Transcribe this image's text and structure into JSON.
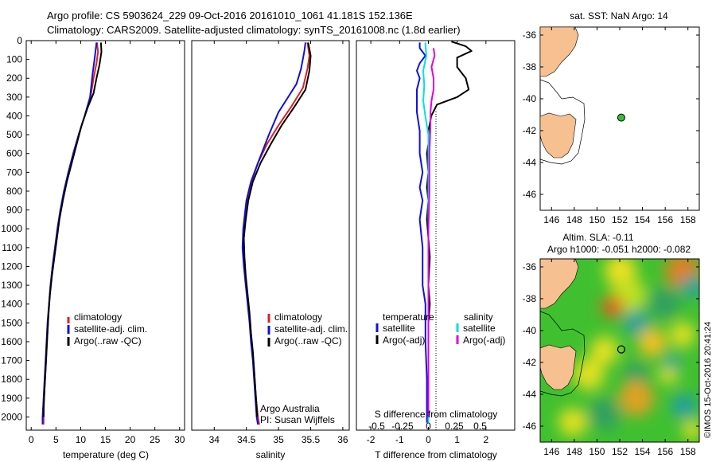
{
  "header": {
    "line1": "Argo profile: CS 5903624_229 09-Oct-2016 20161010_1061 41.181S 152.136E",
    "line2": "Climatology: CARS2009. Satellite-adjusted climatology: synTS_20161008.nc (1.8d earlier)"
  },
  "colors": {
    "climatology": "#e02020",
    "satellite": "#1010e0",
    "argo": "#000000",
    "sat_salinity": "#00e0e0",
    "argo_salinity": "#e000e0",
    "land": "#f7c090"
  },
  "chart_data": [
    {
      "type": "line",
      "name": "temperature-profile",
      "xlabel": "temperature (deg C)",
      "xlim": [
        -1,
        31
      ],
      "ylim": [
        2070,
        0
      ],
      "xticks": [
        "0",
        "5",
        "10",
        "15",
        "20",
        "25",
        "30"
      ],
      "yticks": [
        "0",
        "100",
        "200",
        "300",
        "400",
        "500",
        "600",
        "700",
        "800",
        "900",
        "1000",
        "1100",
        "1200",
        "1300",
        "1400",
        "1500",
        "1600",
        "1700",
        "1800",
        "1900",
        "2000"
      ],
      "legend": [
        "climatology",
        "satellite-adj. clim.",
        "Argo(..raw -QC)"
      ],
      "series": [
        {
          "name": "climatology",
          "color": "#e02020",
          "points": [
            [
              13.3,
              10
            ],
            [
              13.5,
              60
            ],
            [
              13.2,
              120
            ],
            [
              12.6,
              200
            ],
            [
              12.0,
              300
            ],
            [
              10.8,
              400
            ],
            [
              9.6,
              500
            ],
            [
              8.5,
              600
            ],
            [
              7.5,
              700
            ],
            [
              6.7,
              800
            ],
            [
              5.9,
              900
            ],
            [
              5.3,
              1000
            ],
            [
              4.8,
              1100
            ],
            [
              4.3,
              1200
            ],
            [
              3.9,
              1300
            ],
            [
              3.6,
              1400
            ],
            [
              3.4,
              1500
            ],
            [
              3.2,
              1600
            ],
            [
              3.0,
              1700
            ],
            [
              2.8,
              1800
            ],
            [
              2.6,
              1900
            ],
            [
              2.5,
              2000
            ],
            [
              2.5,
              2040
            ]
          ]
        },
        {
          "name": "satellite-adj. clim.",
          "color": "#1010e0",
          "points": [
            [
              13.2,
              10
            ],
            [
              12.9,
              80
            ],
            [
              12.4,
              180
            ],
            [
              11.9,
              300
            ],
            [
              10.8,
              400
            ],
            [
              9.6,
              500
            ],
            [
              8.5,
              600
            ],
            [
              7.5,
              700
            ],
            [
              6.6,
              800
            ],
            [
              5.9,
              900
            ],
            [
              5.3,
              1000
            ],
            [
              4.8,
              1100
            ],
            [
              4.3,
              1200
            ],
            [
              3.9,
              1300
            ],
            [
              3.6,
              1400
            ],
            [
              3.3,
              1500
            ],
            [
              3.1,
              1600
            ],
            [
              2.9,
              1700
            ],
            [
              2.7,
              1800
            ],
            [
              2.5,
              1900
            ],
            [
              2.3,
              2000
            ],
            [
              2.3,
              2040
            ]
          ]
        },
        {
          "name": "Argo(..raw -QC)",
          "color": "#000000",
          "points": [
            [
              14.1,
              10
            ],
            [
              14.2,
              60
            ],
            [
              13.8,
              130
            ],
            [
              13.2,
              200
            ],
            [
              12.6,
              280
            ],
            [
              11.5,
              350
            ],
            [
              10.2,
              450
            ],
            [
              9.2,
              550
            ],
            [
              8.2,
              650
            ],
            [
              7.2,
              750
            ],
            [
              6.4,
              850
            ],
            [
              5.7,
              950
            ],
            [
              5.2,
              1050
            ],
            [
              4.7,
              1150
            ],
            [
              4.2,
              1250
            ],
            [
              3.8,
              1350
            ],
            [
              3.5,
              1450
            ],
            [
              3.3,
              1550
            ],
            [
              3.1,
              1650
            ],
            [
              2.9,
              1750
            ],
            [
              2.7,
              1850
            ],
            [
              2.5,
              1950
            ],
            [
              2.5,
              2000
            ]
          ]
        }
      ]
    },
    {
      "type": "line",
      "name": "salinity-profile",
      "xlabel": "salinity",
      "xlim": [
        33.65,
        36.1
      ],
      "ylim": [
        2070,
        0
      ],
      "xticks": [
        "34",
        "34.5",
        "35",
        "35.5",
        "36"
      ],
      "legend": [
        "climatology",
        "satellite-adj. clim.",
        "Argo(..raw -QC)"
      ],
      "annotation": [
        "Argo Australia",
        "PI: Susan Wijffels"
      ],
      "series": [
        {
          "name": "climatology",
          "color": "#e02020",
          "points": [
            [
              35.45,
              10
            ],
            [
              35.48,
              80
            ],
            [
              35.45,
              150
            ],
            [
              35.38,
              250
            ],
            [
              35.2,
              350
            ],
            [
              35.0,
              450
            ],
            [
              34.82,
              550
            ],
            [
              34.68,
              650
            ],
            [
              34.58,
              750
            ],
            [
              34.52,
              850
            ],
            [
              34.47,
              1000
            ],
            [
              34.45,
              1100
            ],
            [
              34.47,
              1200
            ],
            [
              34.5,
              1300
            ],
            [
              34.53,
              1400
            ],
            [
              34.56,
              1500
            ],
            [
              34.58,
              1600
            ],
            [
              34.61,
              1700
            ],
            [
              34.63,
              1800
            ],
            [
              34.65,
              1900
            ],
            [
              34.68,
              2000
            ],
            [
              34.7,
              2040
            ]
          ]
        },
        {
          "name": "satellite-adj. clim.",
          "color": "#1010e0",
          "points": [
            [
              35.42,
              10
            ],
            [
              35.4,
              60
            ],
            [
              35.35,
              150
            ],
            [
              35.28,
              230
            ],
            [
              35.15,
              300
            ],
            [
              35.0,
              380
            ],
            [
              34.85,
              500
            ],
            [
              34.68,
              650
            ],
            [
              34.57,
              750
            ],
            [
              34.5,
              850
            ],
            [
              34.45,
              1000
            ],
            [
              34.44,
              1100
            ],
            [
              34.46,
              1200
            ],
            [
              34.49,
              1300
            ],
            [
              34.52,
              1400
            ],
            [
              34.55,
              1500
            ],
            [
              34.57,
              1600
            ],
            [
              34.6,
              1700
            ],
            [
              34.62,
              1800
            ],
            [
              34.64,
              1900
            ],
            [
              34.66,
              2000
            ],
            [
              34.68,
              2040
            ]
          ]
        },
        {
          "name": "Argo(..raw -QC)",
          "color": "#000000",
          "points": [
            [
              35.46,
              10
            ],
            [
              35.5,
              80
            ],
            [
              35.48,
              160
            ],
            [
              35.42,
              260
            ],
            [
              35.25,
              350
            ],
            [
              35.05,
              450
            ],
            [
              34.88,
              550
            ],
            [
              34.72,
              650
            ],
            [
              34.6,
              750
            ],
            [
              34.53,
              850
            ],
            [
              34.49,
              950
            ],
            [
              34.46,
              1050
            ],
            [
              34.47,
              1150
            ],
            [
              34.49,
              1250
            ],
            [
              34.52,
              1350
            ],
            [
              34.55,
              1450
            ],
            [
              34.57,
              1550
            ],
            [
              34.6,
              1650
            ],
            [
              34.62,
              1750
            ],
            [
              34.64,
              1850
            ],
            [
              34.66,
              1950
            ],
            [
              34.67,
              2000
            ]
          ]
        }
      ]
    },
    {
      "type": "line",
      "name": "difference-profile",
      "xlabel": "T difference from climatology",
      "xlabel2": "S difference from climatology",
      "xlim": [
        -2.5,
        3.0
      ],
      "ylim": [
        2070,
        0
      ],
      "xticks": [
        "-2",
        "-1",
        "0",
        "1",
        "2"
      ],
      "sticks": [
        "-0.5",
        "-0.25",
        "0",
        "0.25",
        "0.5"
      ],
      "legend_headers": [
        "temperature",
        "salinity"
      ],
      "legend": [
        "satellite",
        "Argo(-adj)",
        "satellite",
        "Argo(-adj)"
      ],
      "series": [
        {
          "name": "temperature satellite",
          "color": "#1010e0",
          "points": [
            [
              -0.3,
              10
            ],
            [
              -0.3,
              40
            ],
            [
              -0.1,
              80
            ],
            [
              -0.3,
              120
            ],
            [
              -0.4,
              160
            ],
            [
              -0.3,
              200
            ],
            [
              -0.4,
              260
            ],
            [
              -0.4,
              380
            ],
            [
              -0.3,
              480
            ],
            [
              -0.3,
              600
            ],
            [
              -0.2,
              700
            ],
            [
              -0.3,
              780
            ],
            [
              -0.2,
              850
            ],
            [
              -0.3,
              950
            ],
            [
              -0.2,
              1100
            ],
            [
              -0.2,
              1300
            ],
            [
              -0.1,
              1400
            ],
            [
              -0.1,
              1600
            ],
            [
              -0.05,
              1800
            ],
            [
              -0.05,
              2030
            ]
          ]
        },
        {
          "name": "temperature Argo(-adj)",
          "color": "#000000",
          "points": [
            [
              0.8,
              5
            ],
            [
              1.3,
              30
            ],
            [
              1.5,
              55
            ],
            [
              1.0,
              90
            ],
            [
              1.0,
              140
            ],
            [
              1.3,
              200
            ],
            [
              1.4,
              260
            ],
            [
              1.0,
              300
            ],
            [
              0.3,
              340
            ],
            [
              0.1,
              400
            ],
            [
              0.0,
              480
            ],
            [
              0.0,
              550
            ],
            [
              -0.05,
              600
            ],
            [
              0.0,
              700
            ],
            [
              -0.05,
              780
            ],
            [
              0.0,
              850
            ],
            [
              -0.05,
              950
            ],
            [
              0.0,
              1050
            ],
            [
              0.05,
              1150
            ],
            [
              0.0,
              1300
            ],
            [
              0.05,
              1400
            ],
            [
              0.0,
              1500
            ],
            [
              0.0,
              1600
            ],
            [
              0.0,
              1800
            ],
            [
              0.0,
              2000
            ]
          ]
        },
        {
          "name": "salinity satellite",
          "color": "#00e0e0",
          "points": [
            [
              -0.03,
              10
            ],
            [
              -0.02,
              80
            ],
            [
              -0.05,
              160
            ],
            [
              -0.04,
              240
            ],
            [
              -0.05,
              320
            ],
            [
              -0.03,
              400
            ],
            [
              0.0,
              500
            ],
            [
              0.0,
              600
            ],
            [
              0.0,
              800
            ],
            [
              0.0,
              1000
            ],
            [
              0.0,
              1200
            ],
            [
              0.0,
              1400
            ],
            [
              0.0,
              1600
            ],
            [
              0.0,
              1800
            ],
            [
              0.0,
              2030
            ]
          ]
        },
        {
          "name": "salinity Argo(-adj)",
          "color": "#e000e0",
          "points": [
            [
              0.05,
              40
            ],
            [
              0.06,
              80
            ],
            [
              0.03,
              140
            ],
            [
              0.05,
              200
            ],
            [
              0.05,
              260
            ],
            [
              0.03,
              320
            ],
            [
              0.02,
              380
            ],
            [
              0.02,
              450
            ],
            [
              0.01,
              600
            ],
            [
              0.01,
              800
            ],
            [
              0.0,
              1000
            ],
            [
              0.0,
              1200
            ],
            [
              0.0,
              1400
            ],
            [
              0.0,
              1600
            ],
            [
              0.0,
              1800
            ],
            [
              0.0,
              2000
            ]
          ]
        }
      ]
    }
  ],
  "map_sst": {
    "title": "sat. SST: NaN Argo: 14",
    "lonlim": [
      145,
      159
    ],
    "latlim": [
      -47,
      -35.5
    ],
    "lonticks": [
      "146",
      "148",
      "150",
      "152",
      "154",
      "156",
      "158"
    ],
    "latticks": [
      "-36",
      "-38",
      "-40",
      "-42",
      "-44",
      "-46"
    ],
    "argo": [
      152.136,
      -41.181
    ]
  },
  "map_sla": {
    "title1": "Altim. SLA: -0.11",
    "title2": "Argo h1000: -0.051 h2000: -0.082",
    "lonlim": [
      145,
      159
    ],
    "latlim": [
      -47,
      -35.5
    ],
    "lonticks": [
      "146",
      "148",
      "150",
      "152",
      "154",
      "156",
      "158"
    ],
    "latticks": [
      "-36",
      "-38",
      "-40",
      "-42",
      "-44",
      "-46"
    ],
    "argo": [
      152.136,
      -41.181
    ]
  },
  "side_stamp": "©IMOS 15-Oct-2016 20:41:24"
}
